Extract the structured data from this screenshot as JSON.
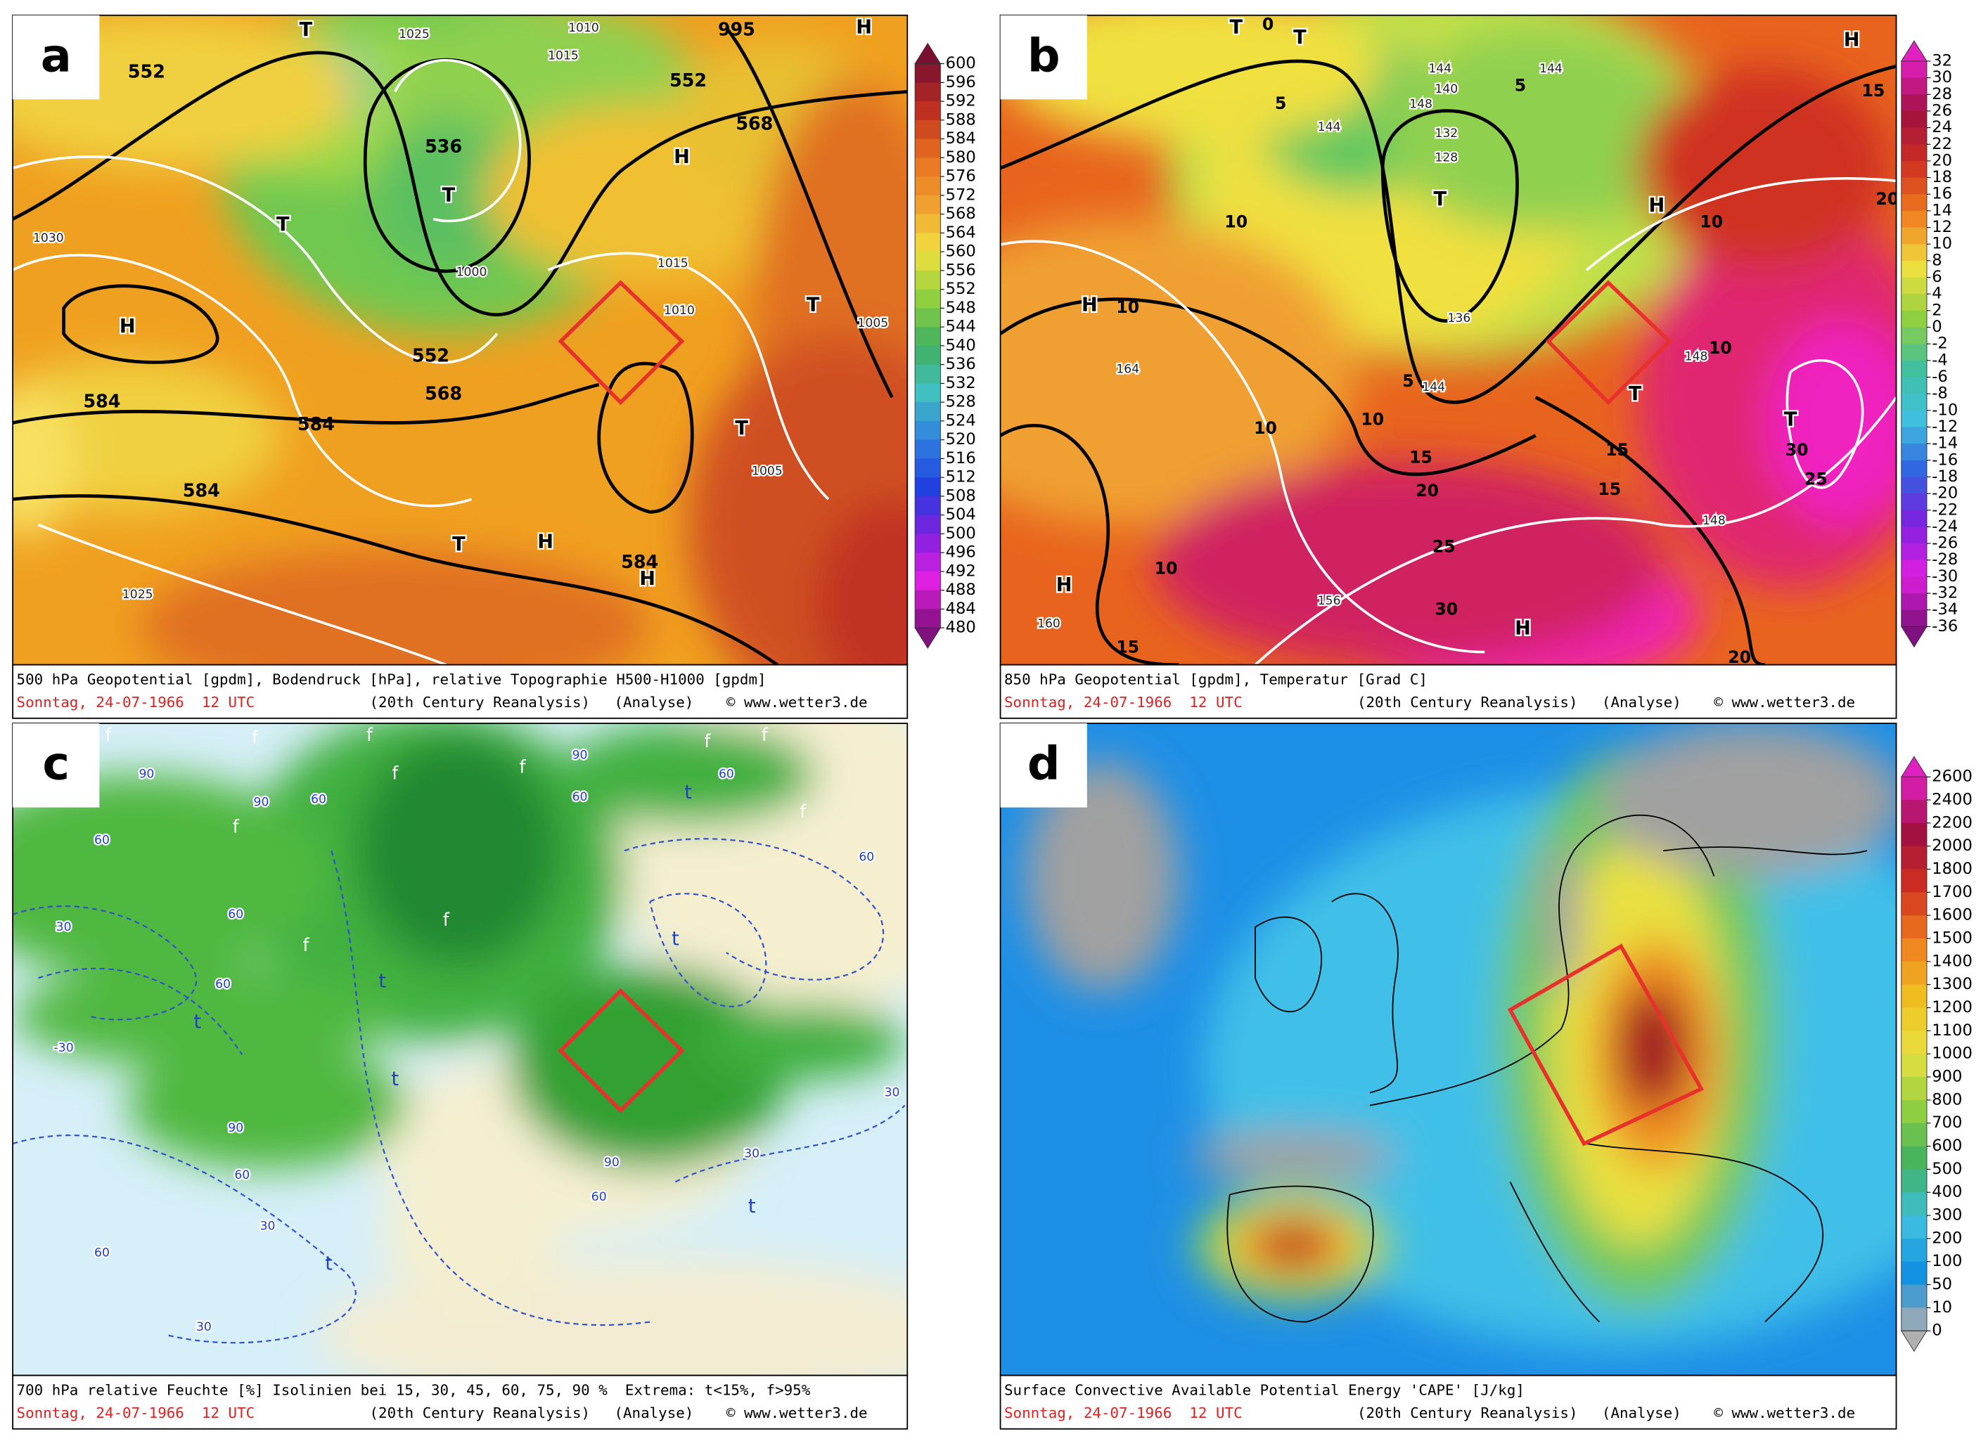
{
  "panels": [
    {
      "letter": "a",
      "caption": "500 hPa Geopotential [gpdm], Bodendruck [hPa], relative Topographie H500-H1000 [gpdm]",
      "date": "Sonntag, 24-07-1966  12 UTC",
      "source": "(20th Century Reanalysis)",
      "mode": "(Analyse)",
      "credit": "© www.wetter3.de",
      "colorbar": [
        600,
        596,
        592,
        588,
        584,
        580,
        576,
        572,
        568,
        564,
        560,
        556,
        552,
        548,
        544,
        540,
        536,
        532,
        528,
        524,
        520,
        516,
        512,
        508,
        504,
        500,
        496,
        492,
        488,
        484,
        480
      ],
      "map_labels": [
        "552",
        "T",
        "1025",
        "1010",
        "995",
        "H",
        "1015",
        "552",
        "568",
        "H",
        "536",
        "T",
        "1000",
        "H",
        "T",
        "1030",
        "584",
        "584",
        "584",
        "552",
        "568",
        "1015",
        "1010",
        "T",
        "1005",
        "T",
        "1005",
        "T",
        "H",
        "584",
        "H",
        "1025"
      ]
    },
    {
      "letter": "b",
      "caption": "850 hPa Geopotential [gpdm], Temperatur [Grad C]",
      "date": "Sonntag, 24-07-1966  12 UTC",
      "source": "(20th Century Reanalysis)",
      "mode": "(Analyse)",
      "credit": "© www.wetter3.de",
      "colorbar": [
        32,
        30,
        28,
        26,
        24,
        22,
        20,
        18,
        16,
        14,
        12,
        10,
        8,
        6,
        4,
        2,
        0,
        -2,
        -4,
        -6,
        -8,
        -10,
        -12,
        -14,
        -16,
        -18,
        -20,
        -22,
        -24,
        -26,
        -28,
        -30,
        -32,
        -34,
        -36
      ],
      "map_labels": [
        "T",
        "0",
        "T",
        "5",
        "144",
        "148",
        "144",
        "140",
        "144",
        "5",
        "132",
        "128",
        "T",
        "136",
        "144",
        "5",
        "10",
        "10",
        "H",
        "10",
        "164",
        "10",
        "10",
        "H",
        "160",
        "15",
        "15",
        "20",
        "25",
        "30",
        "H",
        "156",
        "15",
        "15",
        "148",
        "10",
        "H",
        "H",
        "15",
        "20",
        "T",
        "30",
        "25",
        "20",
        "T",
        "148",
        "10"
      ]
    },
    {
      "letter": "c",
      "caption": "700 hPa relative Feuchte [%] Isolinien bei 15, 30, 45, 60, 75, 90 %  Extrema: t<15%, f>95%",
      "date": "Sonntag, 24-07-1966  12 UTC",
      "source": "(20th Century Reanalysis)",
      "mode": "(Analyse)",
      "credit": "© www.wetter3.de",
      "map_labels": [
        "f",
        "f",
        "f",
        "f",
        "f",
        "90",
        "90",
        "60",
        "f",
        "f",
        "60",
        "90",
        "60",
        "f",
        "60",
        "60",
        "f",
        "60",
        "30",
        "f",
        "60",
        "t",
        "-30",
        "t",
        "f",
        "t",
        "t",
        "90",
        "60",
        "30",
        "60",
        "t",
        "30",
        "90",
        "60",
        "t",
        "30",
        "30",
        "t"
      ]
    },
    {
      "letter": "d",
      "caption": "Surface Convective Available Potential Energy 'CAPE' [J/kg]",
      "date": "Sonntag, 24-07-1966  12 UTC",
      "source": "(20th Century Reanalysis)",
      "mode": "(Analyse)",
      "credit": "© www.wetter3.de",
      "colorbar": [
        2600,
        2400,
        2200,
        2000,
        1800,
        1700,
        1600,
        1500,
        1400,
        1300,
        1200,
        1100,
        1000,
        900,
        800,
        700,
        600,
        500,
        400,
        300,
        200,
        100,
        50,
        10,
        0
      ]
    }
  ]
}
